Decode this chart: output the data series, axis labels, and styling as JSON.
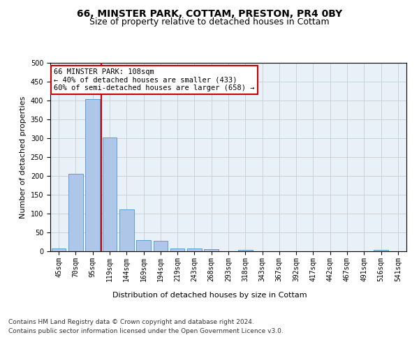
{
  "title": "66, MINSTER PARK, COTTAM, PRESTON, PR4 0BY",
  "subtitle": "Size of property relative to detached houses in Cottam",
  "xlabel": "Distribution of detached houses by size in Cottam",
  "ylabel": "Number of detached properties",
  "bar_color": "#aec6e8",
  "bar_edge_color": "#5a9fd4",
  "background_color": "#ffffff",
  "grid_color": "#cccccc",
  "categories": [
    "45sqm",
    "70sqm",
    "95sqm",
    "119sqm",
    "144sqm",
    "169sqm",
    "194sqm",
    "219sqm",
    "243sqm",
    "268sqm",
    "293sqm",
    "318sqm",
    "343sqm",
    "367sqm",
    "392sqm",
    "417sqm",
    "442sqm",
    "467sqm",
    "491sqm",
    "516sqm",
    "541sqm"
  ],
  "values": [
    8,
    205,
    403,
    302,
    112,
    29,
    27,
    7,
    7,
    5,
    0,
    3,
    0,
    0,
    0,
    0,
    0,
    0,
    0,
    4,
    0
  ],
  "ylim": [
    0,
    500
  ],
  "yticks": [
    0,
    50,
    100,
    150,
    200,
    250,
    300,
    350,
    400,
    450,
    500
  ],
  "vline_x": 2.5,
  "vline_color": "#cc0000",
  "annotation_text": "66 MINSTER PARK: 108sqm\n← 40% of detached houses are smaller (433)\n60% of semi-detached houses are larger (658) →",
  "annotation_box_color": "#ffffff",
  "annotation_box_edge": "#cc0000",
  "footer_line1": "Contains HM Land Registry data © Crown copyright and database right 2024.",
  "footer_line2": "Contains public sector information licensed under the Open Government Licence v3.0.",
  "title_fontsize": 10,
  "subtitle_fontsize": 9,
  "axis_label_fontsize": 8,
  "tick_fontsize": 7,
  "annotation_fontsize": 7.5,
  "footer_fontsize": 6.5
}
